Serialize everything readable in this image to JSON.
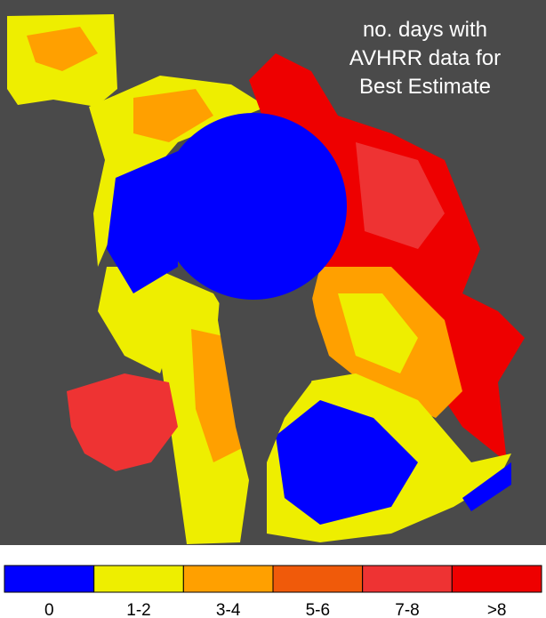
{
  "title": [
    "no. days with",
    "AVHRR data for",
    "Best Estimate"
  ],
  "legend": [
    {
      "label": "0",
      "color": "#0000ff"
    },
    {
      "label": "1-2",
      "color": "#eeee00"
    },
    {
      "label": "3-4",
      "color": "#ffa000"
    },
    {
      "label": "5-6",
      "color": "#f05a0a"
    },
    {
      "label": "7-8",
      "color": "#ee3333"
    },
    {
      "label": ">8",
      "color": "#ee0000"
    }
  ]
}
